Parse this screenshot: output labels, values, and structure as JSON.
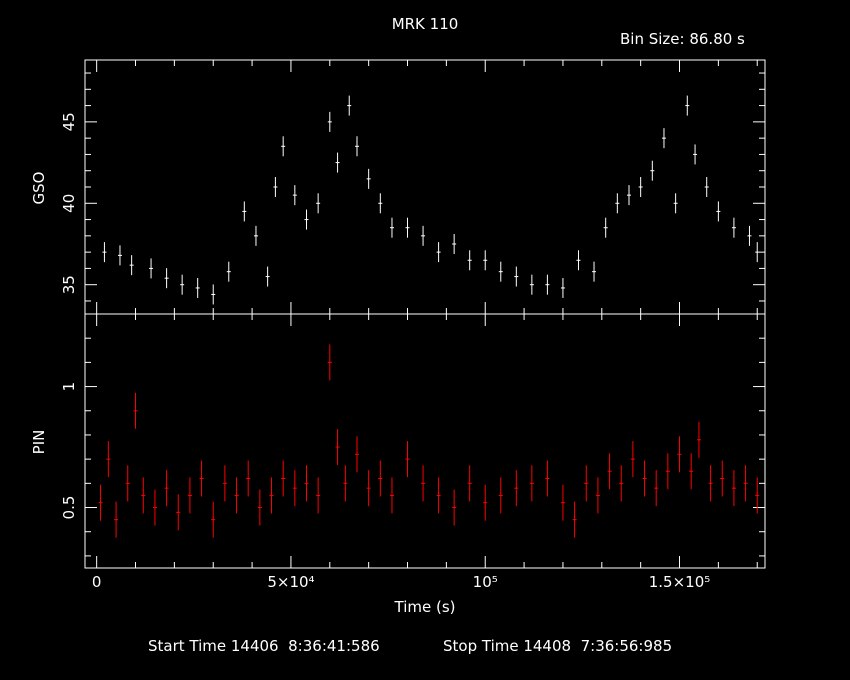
{
  "header": {
    "title": "MRK 110",
    "bin_size": "Bin Size: 86.80 s"
  },
  "footer": {
    "start": "Start Time 14406  8:36:41:586",
    "stop": "Stop Time 14408  7:36:56:985"
  },
  "colors": {
    "background": "#000000",
    "gso": "#ffffff",
    "pin": "#ff0000",
    "axes": "#ffffff"
  },
  "chart_data": [
    {
      "type": "scatter",
      "panel": "top",
      "title": "MRK 110",
      "ylabel": "GSO",
      "xlabel": "",
      "xlim": [
        -3000,
        172000
      ],
      "ylim": [
        33.2,
        48.8
      ],
      "yticks": [
        35,
        40,
        45
      ],
      "ytick_labels": [
        "35",
        "40",
        "45"
      ],
      "error_bars": true,
      "series": [
        {
          "color": "#ffffff",
          "x": [
            2000,
            6000,
            9000,
            14000,
            18000,
            22000,
            26000,
            30000,
            34000,
            38000,
            41000,
            44000,
            46000,
            48000,
            51000,
            54000,
            57000,
            60000,
            62000,
            65000,
            67000,
            70000,
            73000,
            76000,
            80000,
            84000,
            88000,
            92000,
            96000,
            100000,
            104000,
            108000,
            112000,
            116000,
            120000,
            124000,
            128000,
            131000,
            134000,
            137000,
            140000,
            143000,
            146000,
            149000,
            152000,
            154000,
            157000,
            160000,
            164000,
            168000,
            170000
          ],
          "y": [
            37.0,
            36.8,
            36.2,
            36.0,
            35.4,
            35.0,
            34.8,
            34.4,
            35.8,
            39.5,
            38.0,
            35.5,
            41.0,
            43.5,
            40.5,
            39.0,
            40.0,
            45.0,
            42.5,
            46.0,
            43.5,
            41.5,
            40.0,
            38.5,
            38.5,
            38.0,
            37.0,
            37.5,
            36.5,
            36.5,
            35.8,
            35.5,
            35.0,
            35.0,
            34.8,
            36.5,
            35.8,
            38.5,
            40.0,
            40.5,
            41.0,
            42.0,
            44.0,
            40.0,
            46.0,
            43.0,
            41.0,
            39.5,
            38.5,
            38.0,
            37.0
          ]
        }
      ]
    },
    {
      "type": "scatter",
      "panel": "bottom",
      "ylabel": "PIN",
      "xlabel": "Time (s)",
      "xlim": [
        -3000,
        172000
      ],
      "ylim": [
        0.25,
        1.3
      ],
      "yticks": [
        0.5,
        1
      ],
      "ytick_labels": [
        "0.5",
        "1"
      ],
      "xticks": [
        0,
        50000,
        100000,
        150000
      ],
      "xtick_labels": [
        "0",
        "5×10⁴",
        "10⁵",
        "1.5×10⁵"
      ],
      "error_bars": true,
      "series": [
        {
          "color": "#ff0000",
          "x": [
            1000,
            3000,
            5000,
            8000,
            10000,
            12000,
            15000,
            18000,
            21000,
            24000,
            27000,
            30000,
            33000,
            36000,
            39000,
            42000,
            45000,
            48000,
            51000,
            54000,
            57000,
            60000,
            62000,
            64000,
            67000,
            70000,
            73000,
            76000,
            80000,
            84000,
            88000,
            92000,
            96000,
            100000,
            104000,
            108000,
            112000,
            116000,
            120000,
            123000,
            126000,
            129000,
            132000,
            135000,
            138000,
            141000,
            144000,
            147000,
            150000,
            153000,
            155000,
            158000,
            161000,
            164000,
            167000,
            170000
          ],
          "y": [
            0.52,
            0.7,
            0.45,
            0.6,
            0.9,
            0.55,
            0.5,
            0.58,
            0.48,
            0.55,
            0.62,
            0.45,
            0.6,
            0.55,
            0.62,
            0.5,
            0.55,
            0.62,
            0.58,
            0.6,
            0.55,
            1.1,
            0.75,
            0.6,
            0.72,
            0.58,
            0.62,
            0.55,
            0.7,
            0.6,
            0.55,
            0.5,
            0.6,
            0.52,
            0.55,
            0.58,
            0.6,
            0.62,
            0.52,
            0.45,
            0.6,
            0.55,
            0.65,
            0.6,
            0.7,
            0.62,
            0.58,
            0.65,
            0.72,
            0.65,
            0.78,
            0.6,
            0.62,
            0.58,
            0.6,
            0.55
          ]
        }
      ]
    }
  ]
}
